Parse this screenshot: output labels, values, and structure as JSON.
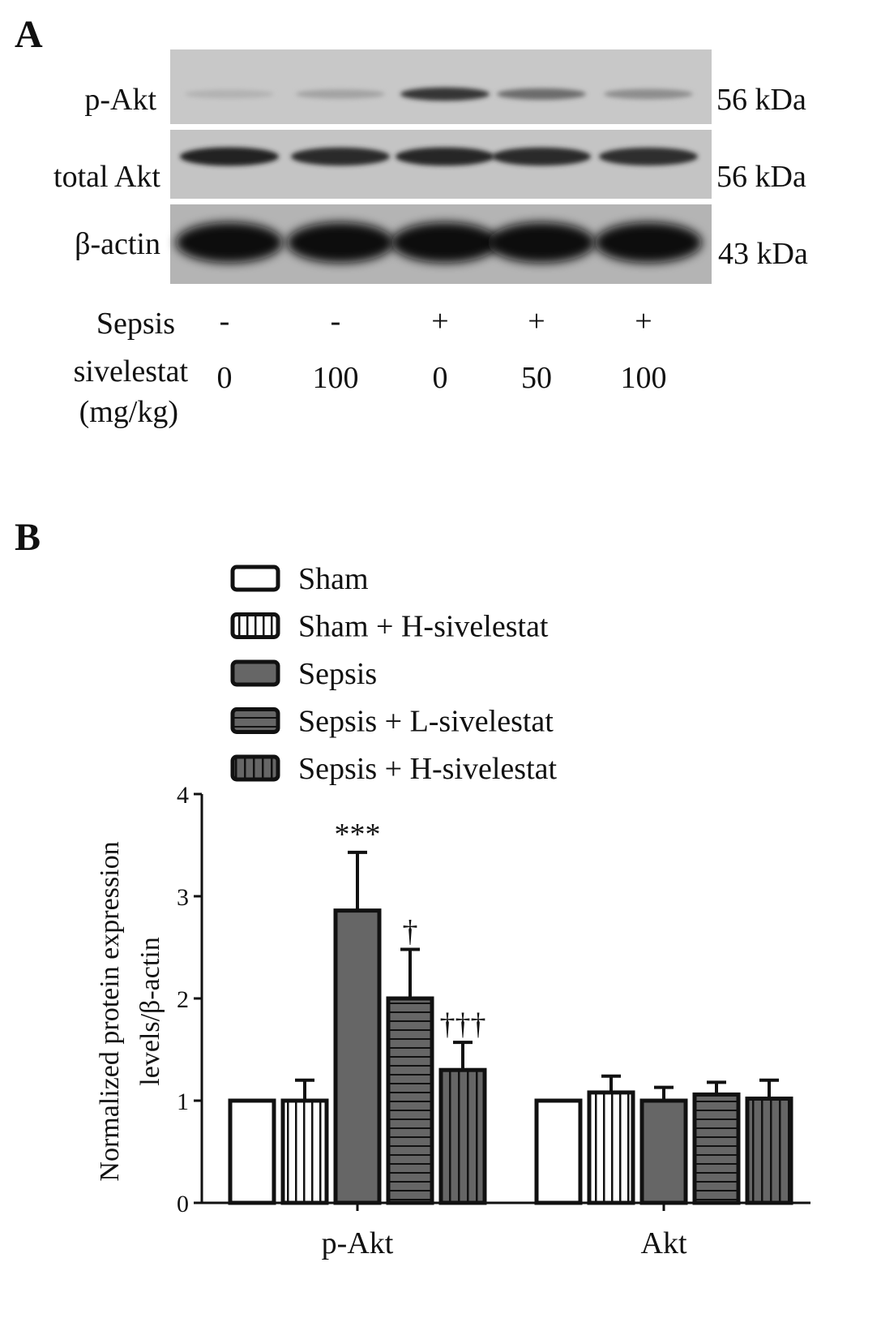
{
  "panel_a": {
    "label": "A",
    "blots": [
      {
        "name": "p-Akt",
        "kda": "56 kDa",
        "intensities": [
          0.12,
          0.2,
          0.8,
          0.5,
          0.32
        ]
      },
      {
        "name": "total Akt",
        "kda": "56 kDa",
        "intensities": [
          0.9,
          0.85,
          0.88,
          0.86,
          0.84
        ]
      },
      {
        "name": "β-actin",
        "kda": "43 kDa",
        "intensities": [
          1,
          1,
          1,
          1,
          1
        ]
      }
    ],
    "conditions": {
      "sepsis_label": "Sepsis",
      "sepsis_values": [
        "-",
        "-",
        "+",
        "+",
        "+"
      ],
      "dose_label_line1": "sivelestat",
      "dose_label_line2": "(mg/kg)",
      "dose_values": [
        "0",
        "100",
        "0",
        "50",
        "100"
      ]
    }
  },
  "panel_b": {
    "label": "B"
  },
  "chart_data": {
    "type": "bar",
    "categories": [
      "p-Akt",
      "Akt"
    ],
    "ylabel_line1": "Normalized protein expression",
    "ylabel_line2": "levels/β-actin",
    "ylim": [
      0,
      4
    ],
    "yticks": [
      "0",
      "1",
      "2",
      "3",
      "4"
    ],
    "legend_position": "top-left",
    "series": [
      {
        "name": "Sham",
        "pattern": "white",
        "values": [
          1.0,
          1.0
        ],
        "errors": [
          0.0,
          0.0
        ],
        "annotations": [
          "",
          ""
        ]
      },
      {
        "name": "Sham + H-sivelestat",
        "pattern": "vertical",
        "values": [
          1.0,
          1.08
        ],
        "errors": [
          0.2,
          0.16
        ],
        "annotations": [
          "",
          ""
        ]
      },
      {
        "name": "Sepsis",
        "pattern": "solid",
        "values": [
          2.86,
          1.0
        ],
        "errors": [
          0.57,
          0.13
        ],
        "annotations": [
          "***",
          ""
        ]
      },
      {
        "name": "Sepsis + L-sivelestat",
        "pattern": "horizontal",
        "values": [
          2.0,
          1.06
        ],
        "errors": [
          0.48,
          0.12
        ],
        "annotations": [
          "†",
          ""
        ]
      },
      {
        "name": "Sepsis + H-sivelestat",
        "pattern": "dark-vertical",
        "values": [
          1.3,
          1.02
        ],
        "errors": [
          0.27,
          0.18
        ],
        "annotations": [
          "†††",
          ""
        ]
      }
    ]
  }
}
